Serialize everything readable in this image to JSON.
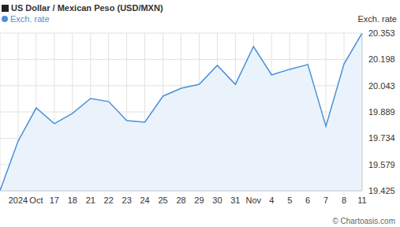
{
  "chart_data": {
    "type": "area",
    "title": "US Dollar / Mexican Peso (USD/MXN)",
    "y_label": "Exch. rate",
    "annotation": "© Chartoasis.com",
    "categories": [
      null,
      "2024",
      "Oct",
      "17",
      "18",
      "21",
      "22",
      "23",
      "24",
      "25",
      "28",
      "29",
      "30",
      "31",
      "Nov",
      "4",
      "5",
      "6",
      "7",
      "8",
      "11"
    ],
    "series": [
      {
        "name": "Exch. rate",
        "color": "#4a90d9",
        "values": [
          19.425,
          19.717,
          19.912,
          19.82,
          19.88,
          19.968,
          19.95,
          19.838,
          19.829,
          19.982,
          20.028,
          20.051,
          20.163,
          20.051,
          20.274,
          20.107,
          20.14,
          20.168,
          19.805,
          20.172,
          20.353
        ]
      }
    ],
    "ylim": [
      19.425,
      20.353
    ],
    "yticks": [
      19.425,
      19.579,
      19.734,
      19.889,
      20.043,
      20.198,
      20.353
    ],
    "grid": true,
    "legend": "top left"
  }
}
